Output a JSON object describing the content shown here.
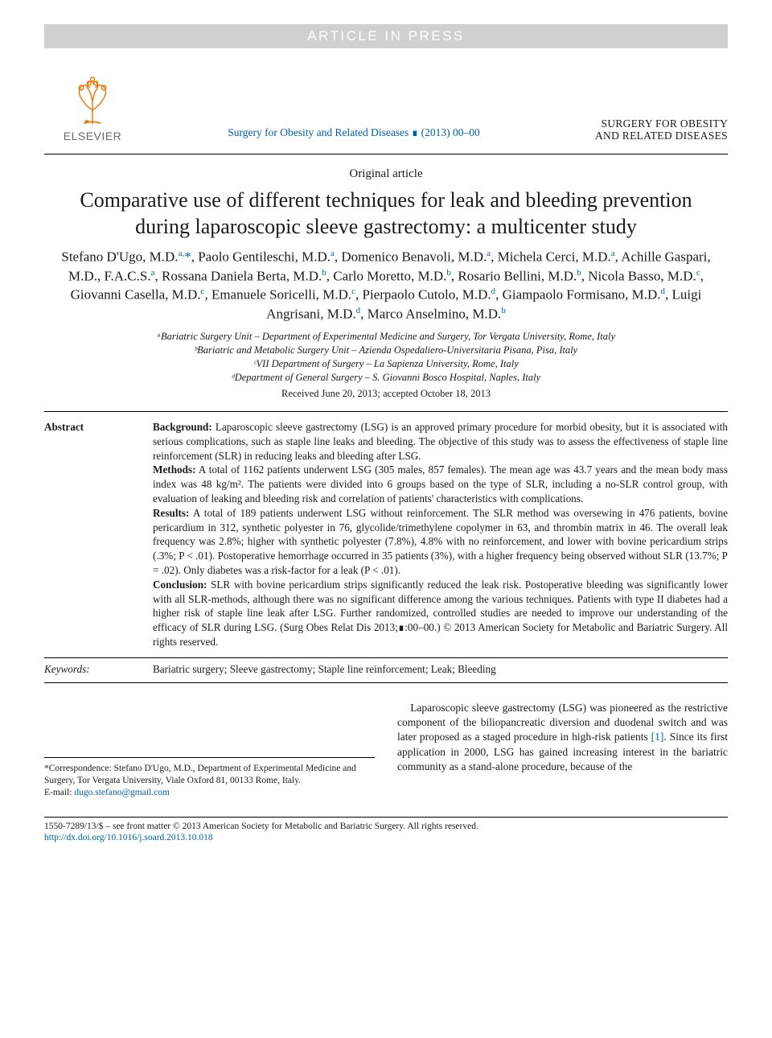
{
  "colors": {
    "banner_bg": "#d0d0d0",
    "banner_text": "#ffffff",
    "link": "#0060a8",
    "logo_orange": "#ec7404",
    "logo_gray": "#6b6b6b",
    "rule": "#000000",
    "text": "#1a1a1a"
  },
  "typography": {
    "title_fontsize": 26,
    "author_fontsize": 17,
    "body_fontsize": 13.5,
    "abstract_fontsize": 13.2,
    "footer_fontsize": 11.5,
    "font_family": "Times New Roman"
  },
  "banner": "ARTICLE IN PRESS",
  "publisher_logo": "ELSEVIER",
  "journal_ref": "Surgery for Obesity and Related Diseases ∎ (2013) 00–00",
  "journal_logo_line1": "SURGERY FOR OBESITY",
  "journal_logo_line2": "AND RELATED DISEASES",
  "article_type": "Original article",
  "title": "Comparative use of different techniques for leak and bleeding prevention during laparoscopic sleeve gastrectomy: a multicenter study",
  "authors_html": "Stefano D'Ugo, M.D.<sup>a,</sup><span class='corr'>*</span>, Paolo Gentileschi, M.D.<sup>a</sup>, Domenico Benavoli, M.D.<sup>a</sup>, Michela Cerci, M.D.<sup>a</sup>, Achille Gaspari, M.D., F.A.C.S.<sup>a</sup>, Rossana Daniela Berta, M.D.<sup>b</sup>, Carlo Moretto, M.D.<sup>b</sup>, Rosario Bellini, M.D.<sup>b</sup>, Nicola Basso, M.D.<sup>c</sup>, Giovanni Casella, M.D.<sup>c</sup>, Emanuele Soricelli, M.D.<sup>c</sup>, Pierpaolo Cutolo, M.D.<sup>d</sup>, Giampaolo Formisano, M.D.<sup>d</sup>, Luigi Angrisani, M.D.<sup>d</sup>, Marco Anselmino, M.D.<sup>b</sup>",
  "affiliations": [
    "ᵃBariatric Surgery Unit – Department of Experimental Medicine and Surgery, Tor Vergata University, Rome, Italy",
    "ᵇBariatric and Metabolic Surgery Unit – Azienda Ospedaliero-Universitaria Pisana, Pisa, Italy",
    "ᶜVII Department of Surgery – La Sapienza University, Rome, Italy",
    "ᵈDepartment of General Surgery – S. Giovanni Bosco Hospital, Naples, Italy"
  ],
  "received": "Received June 20, 2013; accepted October 18, 2013",
  "abstract_label": "Abstract",
  "abstract": {
    "background": "Background: Laparoscopic sleeve gastrectomy (LSG) is an approved primary procedure for morbid obesity, but it is associated with serious complications, such as staple line leaks and bleeding. The objective of this study was to assess the effectiveness of staple line reinforcement (SLR) in reducing leaks and bleeding after LSG.",
    "methods": "Methods: A total of 1162 patients underwent LSG (305 males, 857 females). The mean age was 43.7 years and the mean body mass index was 48 kg/m². The patients were divided into 6 groups based on the type of SLR, including a no-SLR control group, with evaluation of leaking and bleeding risk and correlation of patients' characteristics with complications.",
    "results": "Results: A total of 189 patients underwent LSG without reinforcement. The SLR method was oversewing in 476 patients, bovine pericardium in 312, synthetic polyester in 76, glycolide/trimethylene copolymer in 63, and thrombin matrix in 46. The overall leak frequency was 2.8%; higher with synthetic polyester (7.8%), 4.8% with no reinforcement, and lower with bovine pericardium strips (.3%; P < .01). Postoperative hemorrhage occurred in 35 patients (3%), with a higher frequency being observed without SLR (13.7%; P = .02). Only diabetes was a risk-factor for a leak (P < .01).",
    "conclusion": "Conclusion: SLR with bovine pericardium strips significantly reduced the leak risk. Postoperative bleeding was significantly lower with all SLR-methods, although there was no significant difference among the various techniques. Patients with type II diabetes had a higher risk of staple line leak after LSG. Further randomized, controlled studies are needed to improve our understanding of the efficacy of SLR during LSG. (Surg Obes Relat Dis 2013;∎:00–00.) © 2013 American Society for Metabolic and Bariatric Surgery. All rights reserved."
  },
  "keywords_label": "Keywords:",
  "keywords": "Bariatric surgery; Sleeve gastrectomy; Staple line reinforcement; Leak; Bleeding",
  "correspondence": {
    "text": "*Correspondence: Stefano D'Ugo, M.D., Department of Experimental Medicine and Surgery, Tor Vergata University, Viale Oxford 81, 00133 Rome, Italy.",
    "email_label": "E-mail: ",
    "email": "dugo.stefano@gmail.com"
  },
  "body_para": "Laparoscopic sleeve gastrectomy (LSG) was pioneered as the restrictive component of the biliopancreatic diversion and duodenal switch and was later proposed as a staged procedure in high-risk patients [1]. Since its first application in 2000, LSG has gained increasing interest in the bariatric community as a stand-alone procedure, because of the",
  "ref_marker": "[1]",
  "footer": {
    "issn": "1550-7289/13/$ – see front matter © 2013 American Society for Metabolic and Bariatric Surgery. All rights reserved.",
    "doi": "http://dx.doi.org/10.1016/j.soard.2013.10.018"
  }
}
